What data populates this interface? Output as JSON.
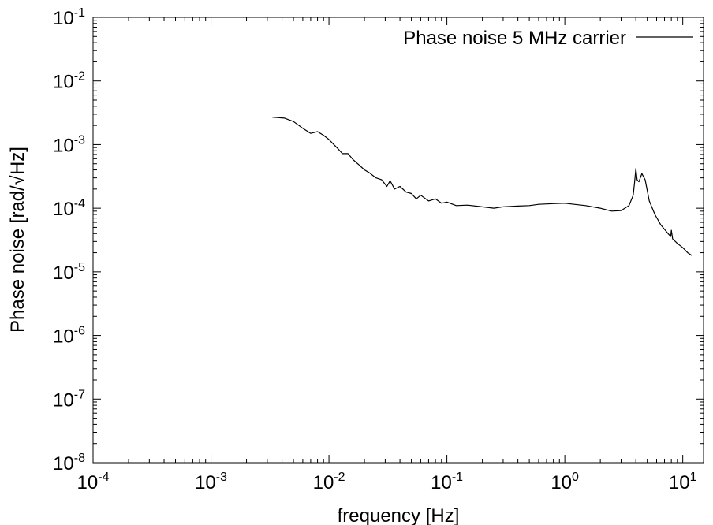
{
  "chart_data": {
    "type": "line",
    "xlabel": "frequency [Hz]",
    "ylabel": "Phase noise [rad/√Hz]",
    "x_scale": "log",
    "y_scale": "log",
    "xlim": [
      0.0001,
      15
    ],
    "ylim": [
      1e-08,
      0.1
    ],
    "x_ticks": [
      {
        "base": "10",
        "exp": "-4",
        "value": 0.0001
      },
      {
        "base": "10",
        "exp": "-3",
        "value": 0.001
      },
      {
        "base": "10",
        "exp": "-2",
        "value": 0.01
      },
      {
        "base": "10",
        "exp": "-1",
        "value": 0.1
      },
      {
        "base": "10",
        "exp": "0",
        "value": 1
      },
      {
        "base": "10",
        "exp": "1",
        "value": 10
      }
    ],
    "y_ticks": [
      {
        "base": "10",
        "exp": "-8",
        "value": 1e-08
      },
      {
        "base": "10",
        "exp": "-7",
        "value": 1e-07
      },
      {
        "base": "10",
        "exp": "-6",
        "value": 1e-06
      },
      {
        "base": "10",
        "exp": "-5",
        "value": 1e-05
      },
      {
        "base": "10",
        "exp": "-4",
        "value": 0.0001
      },
      {
        "base": "10",
        "exp": "-3",
        "value": 0.001
      },
      {
        "base": "10",
        "exp": "-2",
        "value": 0.01
      },
      {
        "base": "10",
        "exp": "-1",
        "value": 0.1
      }
    ],
    "grid": false,
    "legend_position": "top-right",
    "series": [
      {
        "name": "Phase noise 5 MHz carrier",
        "color": "#000000",
        "x": [
          0.0033,
          0.0042,
          0.005,
          0.006,
          0.007,
          0.008,
          0.009,
          0.01,
          0.011,
          0.012,
          0.013,
          0.0145,
          0.016,
          0.018,
          0.02,
          0.022,
          0.025,
          0.028,
          0.031,
          0.033,
          0.036,
          0.04,
          0.045,
          0.05,
          0.055,
          0.06,
          0.07,
          0.08,
          0.09,
          0.1,
          0.12,
          0.15,
          0.2,
          0.25,
          0.3,
          0.4,
          0.5,
          0.6,
          0.8,
          1.0,
          1.2,
          1.5,
          2.0,
          2.5,
          3.0,
          3.5,
          3.8,
          3.9,
          4.0,
          4.1,
          4.25,
          4.5,
          4.8,
          5.2,
          5.8,
          6.5,
          7.5,
          7.9,
          8.0,
          8.2,
          9.0,
          10.0,
          11.0,
          12.0
        ],
        "y": [
          0.0027,
          0.0026,
          0.0023,
          0.0018,
          0.0015,
          0.0016,
          0.0014,
          0.0012,
          0.001,
          0.00085,
          0.00072,
          0.00072,
          0.00058,
          0.00048,
          0.0004,
          0.00036,
          0.0003,
          0.00028,
          0.00022,
          0.00027,
          0.0002,
          0.00022,
          0.00018,
          0.00017,
          0.00014,
          0.00016,
          0.00013,
          0.00014,
          0.00012,
          0.000125,
          0.00011,
          0.000112,
          0.000105,
          0.0001,
          0.000105,
          0.000108,
          0.00011,
          0.000115,
          0.000118,
          0.00012,
          0.000115,
          0.00011,
          0.0001,
          9e-05,
          9.2e-05,
          0.00011,
          0.00016,
          0.00025,
          0.00042,
          0.00028,
          0.00026,
          0.00035,
          0.00028,
          0.00013,
          8e-05,
          5.5e-05,
          4e-05,
          3.6e-05,
          4.5e-05,
          3.3e-05,
          2.8e-05,
          2.4e-05,
          2e-05,
          1.8e-05
        ]
      }
    ]
  }
}
